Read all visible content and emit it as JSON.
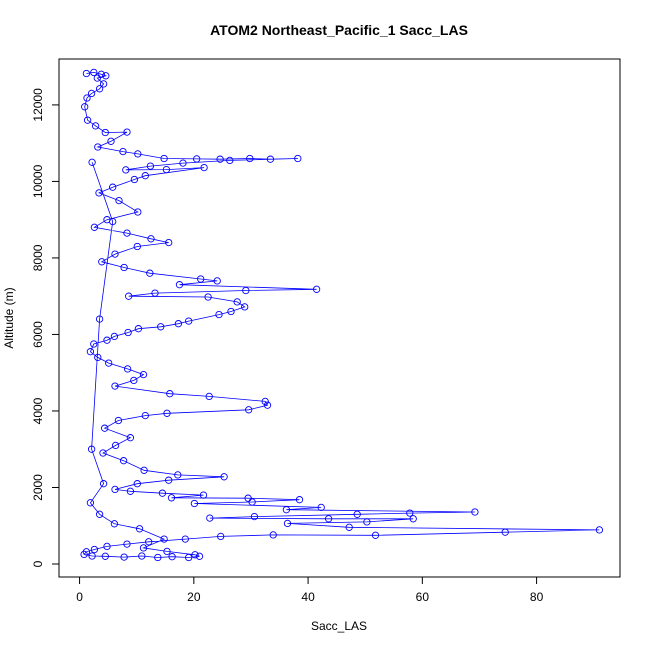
{
  "chart_data": {
    "type": "scatter",
    "title": "ATOM2 Northeast_Pacific_1 Sacc_LAS",
    "xlabel": "Sacc_LAS",
    "ylabel": "Altitude (m)",
    "xlim": [
      -3.6,
      94.6
    ],
    "ylim": [
      -340,
      13200
    ],
    "xticks": [
      0,
      20,
      40,
      60,
      80
    ],
    "yticks": [
      0,
      2000,
      4000,
      6000,
      8000,
      10000,
      12000
    ],
    "grid": false,
    "marker": "open-circle",
    "connected": true,
    "color": "#0000FF",
    "series": [
      {
        "points": [
          [
            1.2,
            12820
          ],
          [
            2.5,
            12850
          ],
          [
            3.8,
            12800
          ],
          [
            4.6,
            12760
          ],
          [
            3.1,
            12700
          ],
          [
            4.2,
            12550
          ],
          [
            3.5,
            12420
          ],
          [
            2.1,
            12300
          ],
          [
            1.3,
            12180
          ],
          [
            0.9,
            11950
          ],
          [
            1.4,
            11600
          ],
          [
            2.8,
            11450
          ],
          [
            4.5,
            11280
          ],
          [
            8.3,
            11290
          ],
          [
            5.5,
            11050
          ],
          [
            3.2,
            10900
          ],
          [
            7.6,
            10780
          ],
          [
            10.2,
            10720
          ],
          [
            14.8,
            10600
          ],
          [
            20.5,
            10590
          ],
          [
            24.6,
            10580
          ],
          [
            29.8,
            10600
          ],
          [
            33.4,
            10580
          ],
          [
            38.2,
            10600
          ],
          [
            26.3,
            10550
          ],
          [
            18.1,
            10480
          ],
          [
            12.4,
            10400
          ],
          [
            8.1,
            10300
          ],
          [
            15.2,
            10310
          ],
          [
            21.8,
            10360
          ],
          [
            11.5,
            10150
          ],
          [
            9.6,
            10050
          ],
          [
            5.8,
            9850
          ],
          [
            3.4,
            9700
          ],
          [
            6.9,
            9500
          ],
          [
            10.2,
            9200
          ],
          [
            4.8,
            9000
          ],
          [
            2.6,
            8800
          ],
          [
            8.3,
            8650
          ],
          [
            12.5,
            8500
          ],
          [
            15.6,
            8400
          ],
          [
            10.1,
            8300
          ],
          [
            6.2,
            8100
          ],
          [
            3.9,
            7900
          ],
          [
            7.8,
            7750
          ],
          [
            12.3,
            7600
          ],
          [
            21.2,
            7450
          ],
          [
            24.1,
            7400
          ],
          [
            17.5,
            7300
          ],
          [
            41.5,
            7180
          ],
          [
            29.1,
            7150
          ],
          [
            13.2,
            7080
          ],
          [
            8.6,
            7000
          ],
          [
            22.5,
            6980
          ],
          [
            27.6,
            6850
          ],
          [
            28.9,
            6720
          ],
          [
            26.5,
            6600
          ],
          [
            24.4,
            6520
          ],
          [
            19.1,
            6350
          ],
          [
            17.3,
            6280
          ],
          [
            14.2,
            6200
          ],
          [
            10.3,
            6150
          ],
          [
            8.5,
            6050
          ],
          [
            6.1,
            5950
          ],
          [
            4.8,
            5850
          ],
          [
            2.5,
            5750
          ],
          [
            1.9,
            5550
          ],
          [
            3.2,
            5400
          ],
          [
            5.1,
            5250
          ],
          [
            8.4,
            5100
          ],
          [
            11.2,
            4950
          ],
          [
            9.5,
            4800
          ],
          [
            6.2,
            4650
          ],
          [
            15.8,
            4450
          ],
          [
            22.7,
            4380
          ],
          [
            32.5,
            4250
          ],
          [
            32.9,
            4150
          ],
          [
            29.6,
            4030
          ],
          [
            15.3,
            3940
          ],
          [
            11.5,
            3880
          ],
          [
            6.8,
            3750
          ],
          [
            4.4,
            3550
          ],
          [
            8.9,
            3300
          ],
          [
            6.3,
            3100
          ],
          [
            4.1,
            2900
          ],
          [
            7.7,
            2700
          ],
          [
            11.3,
            2450
          ],
          [
            17.2,
            2330
          ],
          [
            25.3,
            2280
          ],
          [
            15.6,
            2190
          ],
          [
            10.1,
            2100
          ],
          [
            6.2,
            1950
          ],
          [
            8.9,
            1900
          ],
          [
            14.5,
            1850
          ],
          [
            21.7,
            1800
          ],
          [
            16.1,
            1730
          ],
          [
            29.5,
            1720
          ],
          [
            38.5,
            1680
          ],
          [
            30.2,
            1620
          ],
          [
            20.1,
            1580
          ],
          [
            42.3,
            1480
          ],
          [
            36.2,
            1420
          ],
          [
            69.2,
            1360
          ],
          [
            57.8,
            1330
          ],
          [
            48.6,
            1300
          ],
          [
            30.6,
            1240
          ],
          [
            22.8,
            1200
          ],
          [
            43.6,
            1180
          ],
          [
            58.4,
            1180
          ],
          [
            50.3,
            1100
          ],
          [
            36.4,
            1060
          ],
          [
            47.2,
            960
          ],
          [
            91.0,
            890
          ],
          [
            74.5,
            830
          ],
          [
            51.8,
            750
          ],
          [
            33.9,
            760
          ],
          [
            24.7,
            720
          ],
          [
            18.5,
            650
          ],
          [
            12.1,
            580
          ],
          [
            8.3,
            520
          ],
          [
            4.8,
            460
          ],
          [
            2.6,
            380
          ],
          [
            1.2,
            320
          ],
          [
            0.8,
            250
          ],
          [
            2.2,
            210
          ],
          [
            4.5,
            200
          ],
          [
            7.8,
            180
          ],
          [
            10.9,
            210
          ],
          [
            13.7,
            170
          ],
          [
            16.2,
            190
          ],
          [
            19.1,
            170
          ],
          [
            21.0,
            200
          ],
          [
            20.2,
            240
          ],
          [
            15.3,
            330
          ],
          [
            11.2,
            420
          ],
          [
            14.8,
            650
          ],
          [
            10.5,
            920
          ],
          [
            6.1,
            1050
          ],
          [
            3.5,
            1300
          ],
          [
            1.9,
            1600
          ],
          [
            4.2,
            2100
          ],
          [
            2.1,
            3000
          ],
          [
            3.5,
            6400
          ],
          [
            5.8,
            8950
          ],
          [
            2.2,
            10500
          ]
        ]
      }
    ]
  }
}
